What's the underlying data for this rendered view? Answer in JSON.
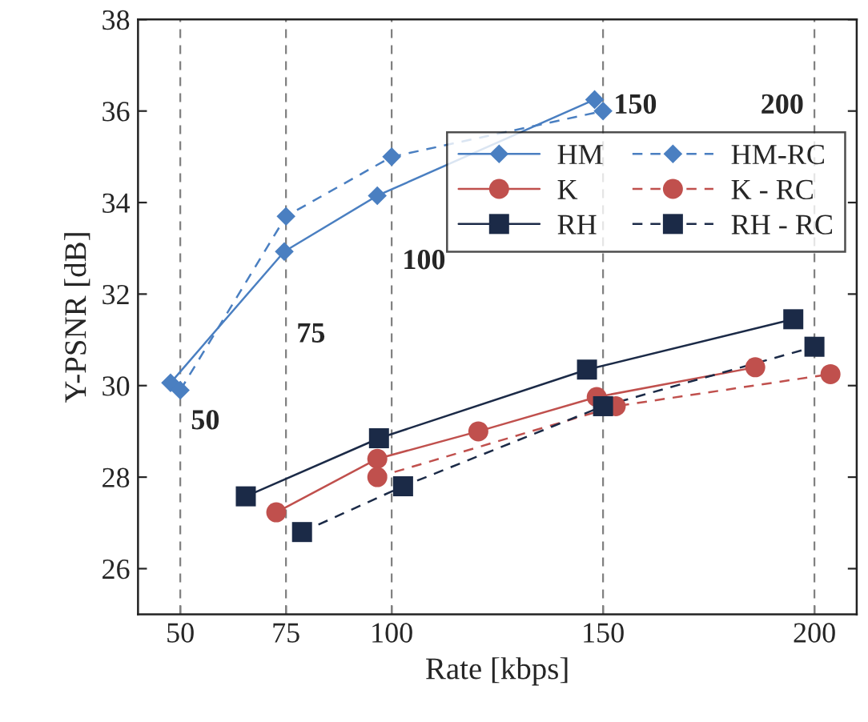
{
  "chart_data": {
    "type": "line",
    "xlabel": "Rate [kbps]",
    "ylabel": "Y-PSNR [dB]",
    "xlim": [
      40,
      210
    ],
    "xticks": [
      50,
      75,
      100,
      150,
      200
    ],
    "ylim": [
      25,
      38
    ],
    "yticks": [
      26,
      28,
      30,
      32,
      34,
      36,
      38
    ],
    "grid": false,
    "legend": "top right",
    "series": [
      {
        "name": "HM",
        "color": "#4a7fc1",
        "marker": "diamond",
        "line_style": "solid",
        "x": [
          47.7,
          74.6,
          96.6,
          148
        ],
        "values": [
          30.06,
          32.93,
          34.15,
          36.25
        ]
      },
      {
        "name": "K",
        "color": "#c0504d",
        "marker": "circle",
        "line_style": "solid",
        "x": [
          72.7,
          96.6,
          120.5,
          148.5,
          186
        ],
        "values": [
          27.23,
          28.4,
          29.0,
          29.75,
          30.4
        ]
      },
      {
        "name": "RH",
        "color": "#1b2a47",
        "marker": "square",
        "line_style": "solid",
        "x": [
          65.5,
          97,
          146.2,
          195
        ],
        "values": [
          27.58,
          28.85,
          30.35,
          31.45
        ]
      },
      {
        "name": "HM-RC",
        "color": "#4a7fc1",
        "marker": "diamond",
        "line_style": "dashed",
        "x": [
          50,
          75,
          100,
          150
        ],
        "values": [
          29.9,
          33.7,
          35.0,
          36.0
        ]
      },
      {
        "name": "K - RC",
        "color": "#c0504d",
        "marker": "circle",
        "line_style": "dashed",
        "x": [
          96.6,
          153,
          203.8
        ],
        "values": [
          28.0,
          29.55,
          30.25
        ]
      },
      {
        "name": "RH - RC",
        "color": "#1b2a47",
        "marker": "square",
        "line_style": "dashed",
        "x": [
          78.8,
          102.7,
          150,
          200
        ],
        "values": [
          26.8,
          27.8,
          29.55,
          30.85
        ]
      }
    ],
    "ref_lines": [
      {
        "axis": "x",
        "value": 50,
        "color": "#808080",
        "line_style": "dashed"
      },
      {
        "axis": "x",
        "value": 75,
        "color": "#808080",
        "line_style": "dashed"
      },
      {
        "axis": "x",
        "value": 100,
        "color": "#808080",
        "line_style": "dashed"
      },
      {
        "axis": "x",
        "value": 150,
        "color": "#808080",
        "line_style": "dashed"
      },
      {
        "axis": "x",
        "value": 200,
        "color": "#808080",
        "line_style": "dashed"
      }
    ],
    "annotations": [
      {
        "text": "50",
        "x": 50,
        "y": 29.2
      },
      {
        "text": "75",
        "x": 75,
        "y": 31.1
      },
      {
        "text": "100",
        "x": 100,
        "y": 32.7
      },
      {
        "text": "150",
        "x": 150,
        "y": 36.1
      },
      {
        "text": "200",
        "x": 200,
        "y": 36.1
      }
    ]
  }
}
